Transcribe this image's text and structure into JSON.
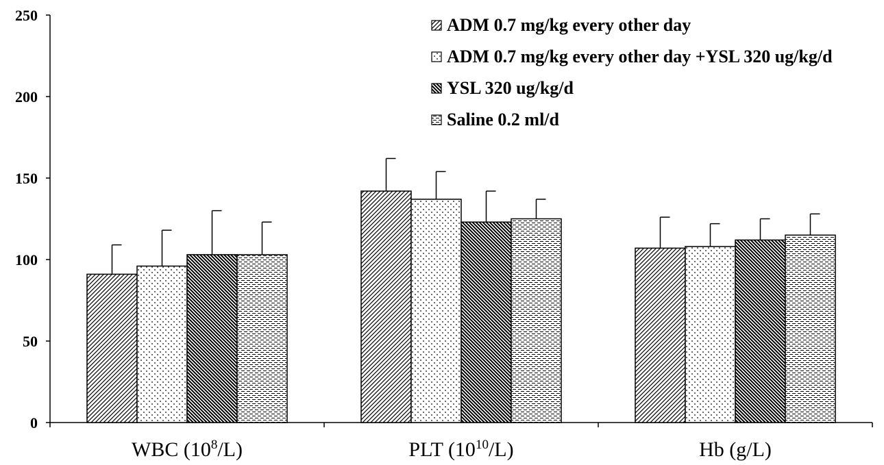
{
  "chart_data": {
    "type": "bar",
    "title": "",
    "xlabel": "",
    "ylabel": "",
    "ylim": [
      0,
      250
    ],
    "yticks": [
      0,
      50,
      100,
      150,
      200,
      250
    ],
    "grid": false,
    "legend_position": "top-right",
    "categories": [
      {
        "base": "WBC (10",
        "sup": "8",
        "tail": "/L)"
      },
      {
        "base": "PLT (10",
        "sup": "10",
        "tail": "/L)"
      },
      {
        "base": "Hb (g/L)",
        "sup": "",
        "tail": ""
      }
    ],
    "series": [
      {
        "name": "ADM  0.7 mg/kg every other day",
        "pattern": "diag-right-dense",
        "values": [
          91,
          142,
          107
        ],
        "errors": [
          18,
          20,
          19
        ]
      },
      {
        "name": "ADM  0.7 mg/kg every other day +YSL 320 ug/kg/d",
        "pattern": "dots",
        "values": [
          96,
          137,
          108
        ],
        "errors": [
          22,
          17,
          14
        ]
      },
      {
        "name": "YSL 320 ug/kg/d",
        "pattern": "diag-left-dark",
        "values": [
          103,
          123,
          112
        ],
        "errors": [
          27,
          19,
          13
        ]
      },
      {
        "name": "Saline  0.2 ml/d",
        "pattern": "horizontal-dashes",
        "values": [
          103,
          125,
          115
        ],
        "errors": [
          20,
          12,
          13
        ]
      }
    ]
  }
}
